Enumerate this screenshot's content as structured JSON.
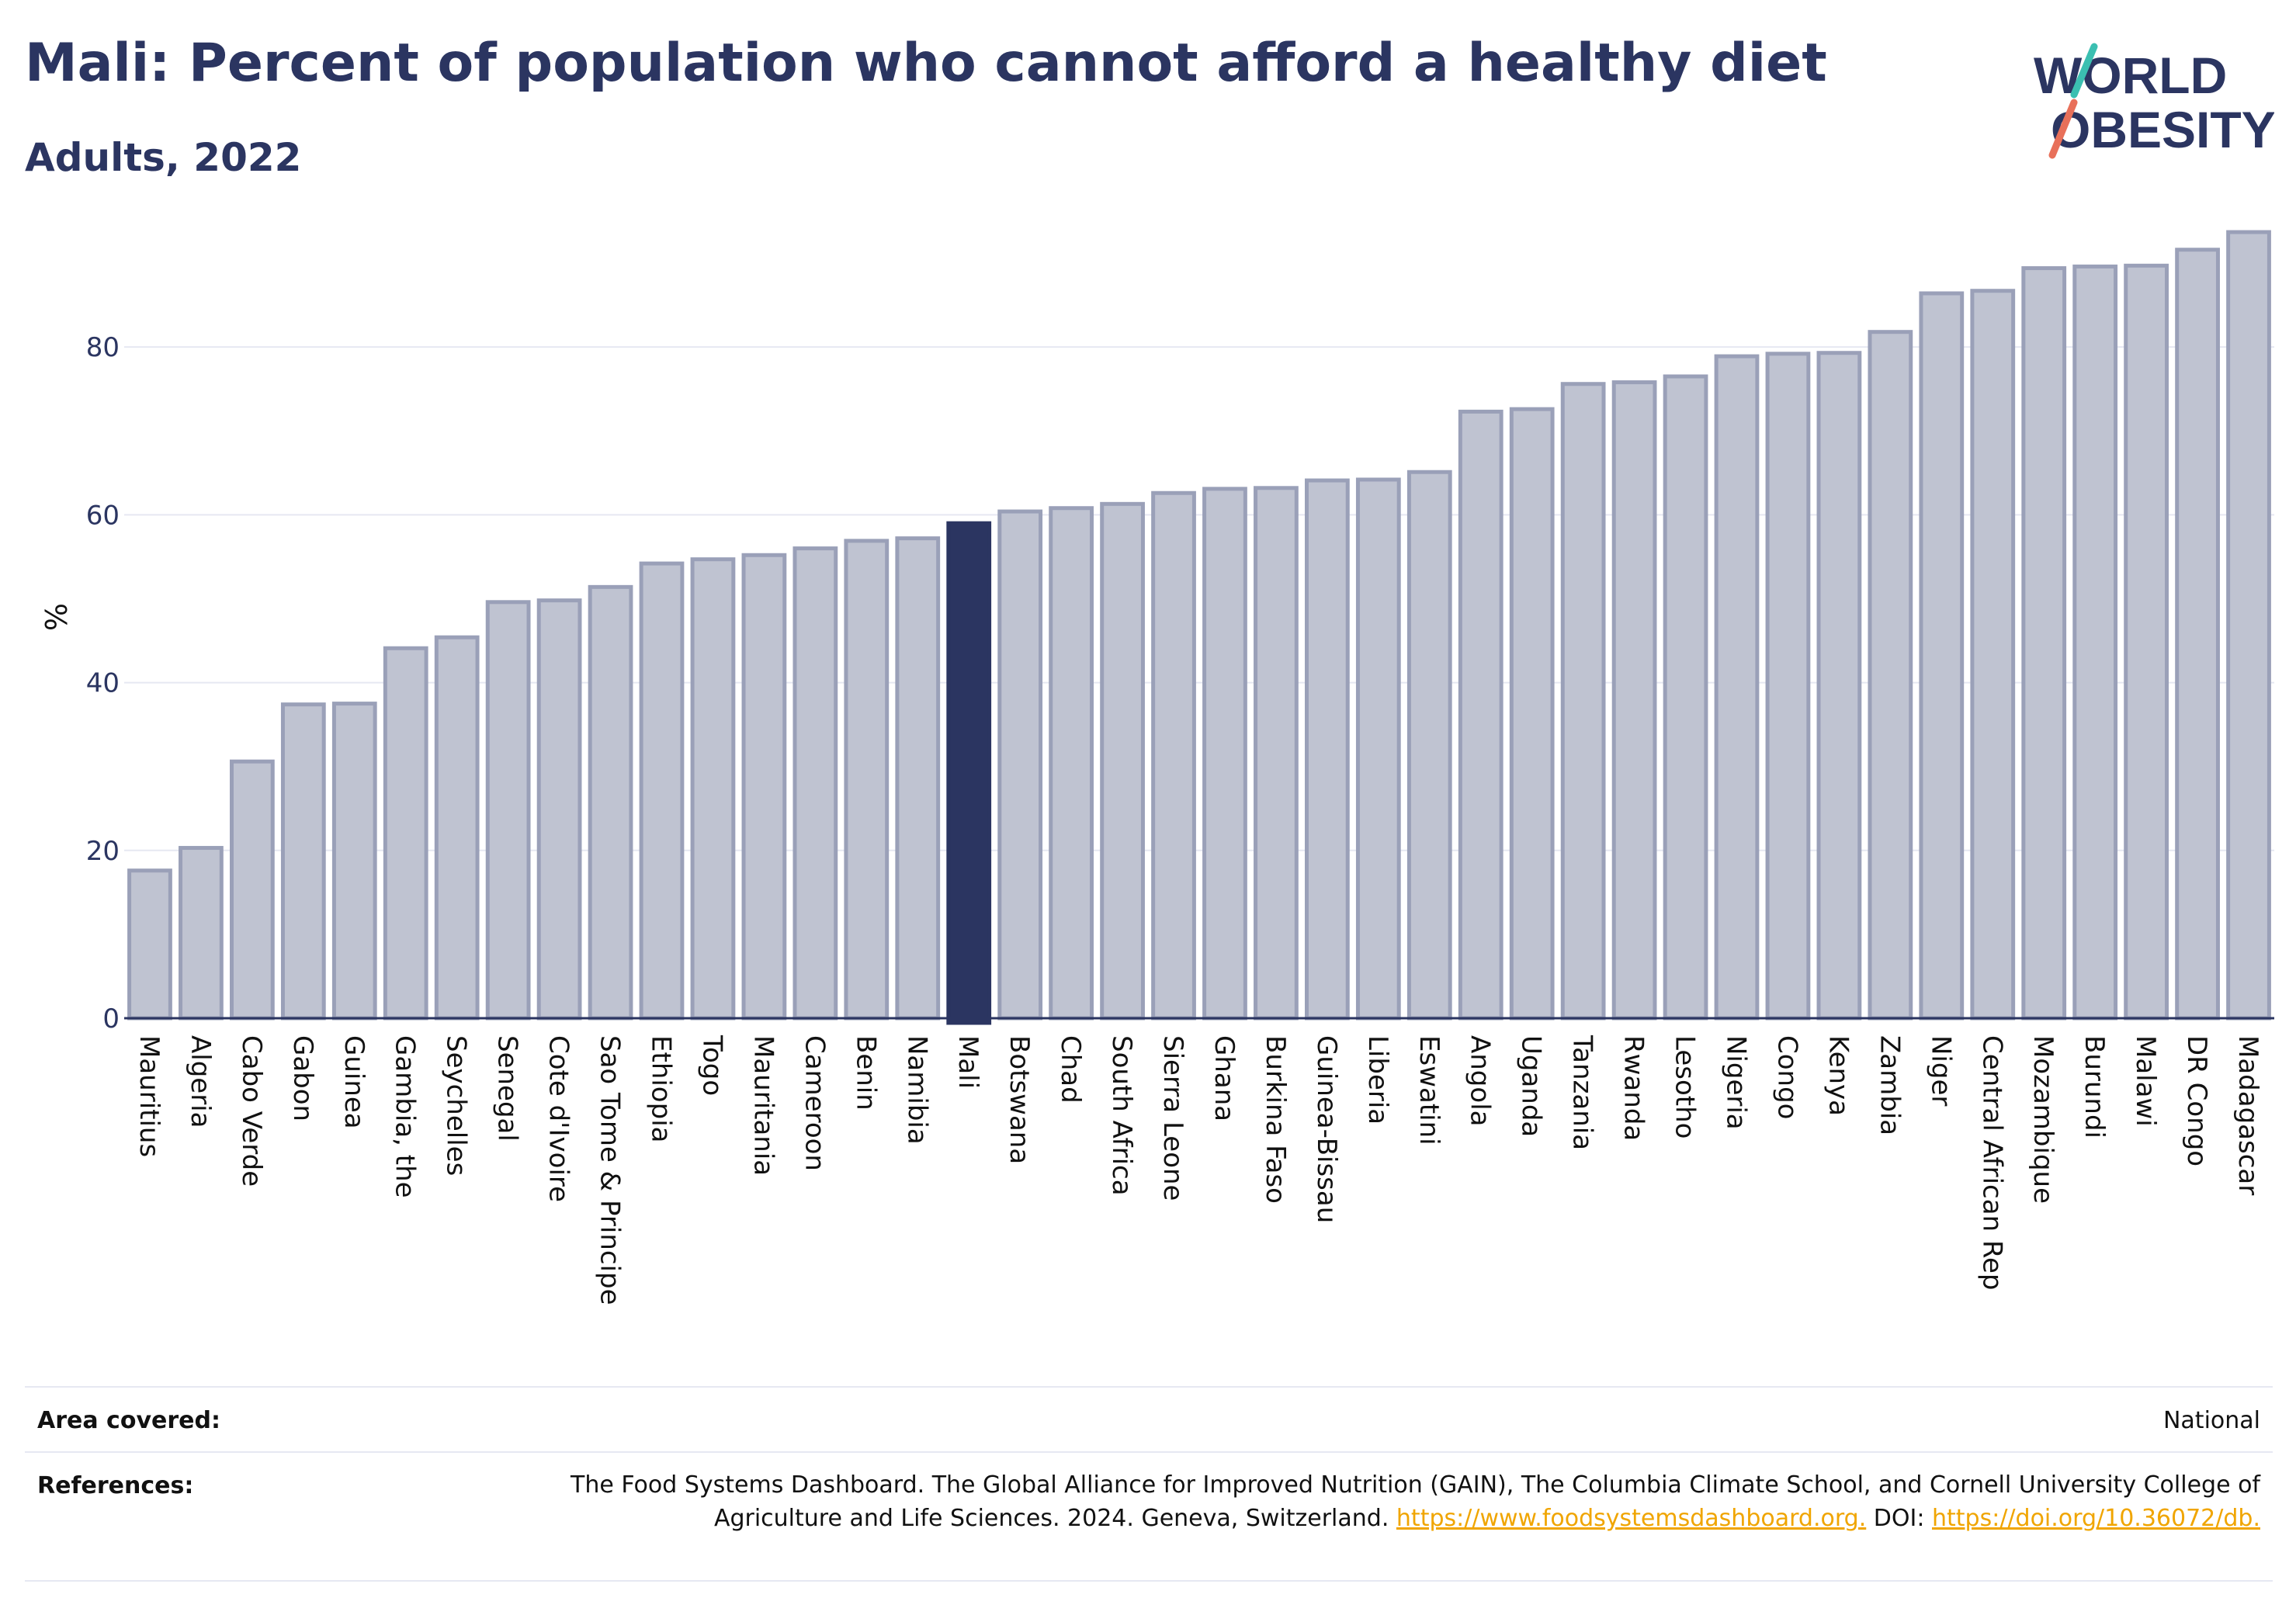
{
  "header": {
    "title": "Mali: Percent of population who cannot afford a healthy diet",
    "subtitle": "Adults, 2022"
  },
  "logo": {
    "line1": "WORLD",
    "line2": "OBESITY",
    "text_color": "#2b3561",
    "slash_colors": [
      "#3bbfb1",
      "#e8705a"
    ]
  },
  "colors": {
    "bar": "#bfc3d1",
    "bar_border": "#9aa0b8",
    "highlight": "#2b3561",
    "grid": "#e6e8f2",
    "axis": "#2b3561"
  },
  "chart_data": {
    "type": "bar",
    "ylabel": "%",
    "ylim": [
      0,
      95
    ],
    "yticks": [
      0,
      20,
      40,
      60,
      80
    ],
    "grid": true,
    "highlight": "Mali",
    "categories": [
      "Mauritius",
      "Algeria",
      "Cabo Verde",
      "Gabon",
      "Guinea",
      "Gambia, the",
      "Seychelles",
      "Senegal",
      "Cote d'Ivoire",
      "Sao Tome & Principe",
      "Ethiopia",
      "Togo",
      "Mauritania",
      "Cameroon",
      "Benin",
      "Namibia",
      "Mali",
      "Botswana",
      "Chad",
      "South Africa",
      "Sierra Leone",
      "Ghana",
      "Burkina Faso",
      "Guinea-Bissau",
      "Liberia",
      "Eswatini",
      "Angola",
      "Uganda",
      "Tanzania",
      "Rwanda",
      "Lesotho",
      "Nigeria",
      "Congo",
      "Kenya",
      "Zambia",
      "Niger",
      "Central African Rep",
      "Mozambique",
      "Burundi",
      "Malawi",
      "DR Congo",
      "Madagascar"
    ],
    "values": [
      17.6,
      20.3,
      30.6,
      37.4,
      37.5,
      44.1,
      45.4,
      49.6,
      49.8,
      51.4,
      54.2,
      54.7,
      55.2,
      56.0,
      56.9,
      57.2,
      59.0,
      60.4,
      60.8,
      61.3,
      62.6,
      63.1,
      63.2,
      64.1,
      64.2,
      65.1,
      72.3,
      72.6,
      75.6,
      75.8,
      76.5,
      78.9,
      79.2,
      79.3,
      81.8,
      86.4,
      86.7,
      89.4,
      89.6,
      89.7,
      91.6,
      93.7
    ]
  },
  "footer": {
    "area_label": "Area covered:",
    "area_value": "National",
    "references_label": "References:",
    "references_text": "The Food Systems Dashboard. The Global Alliance for Improved Nutrition (GAIN), The Columbia Climate School, and Cornell University College of Agriculture and Life Sciences. 2024. Geneva, Switzerland.",
    "references_url": "https://www.foodsystemsdashboard.org.",
    "doi_label": "DOI:",
    "doi_url": "https://doi.org/10.36072/db."
  }
}
